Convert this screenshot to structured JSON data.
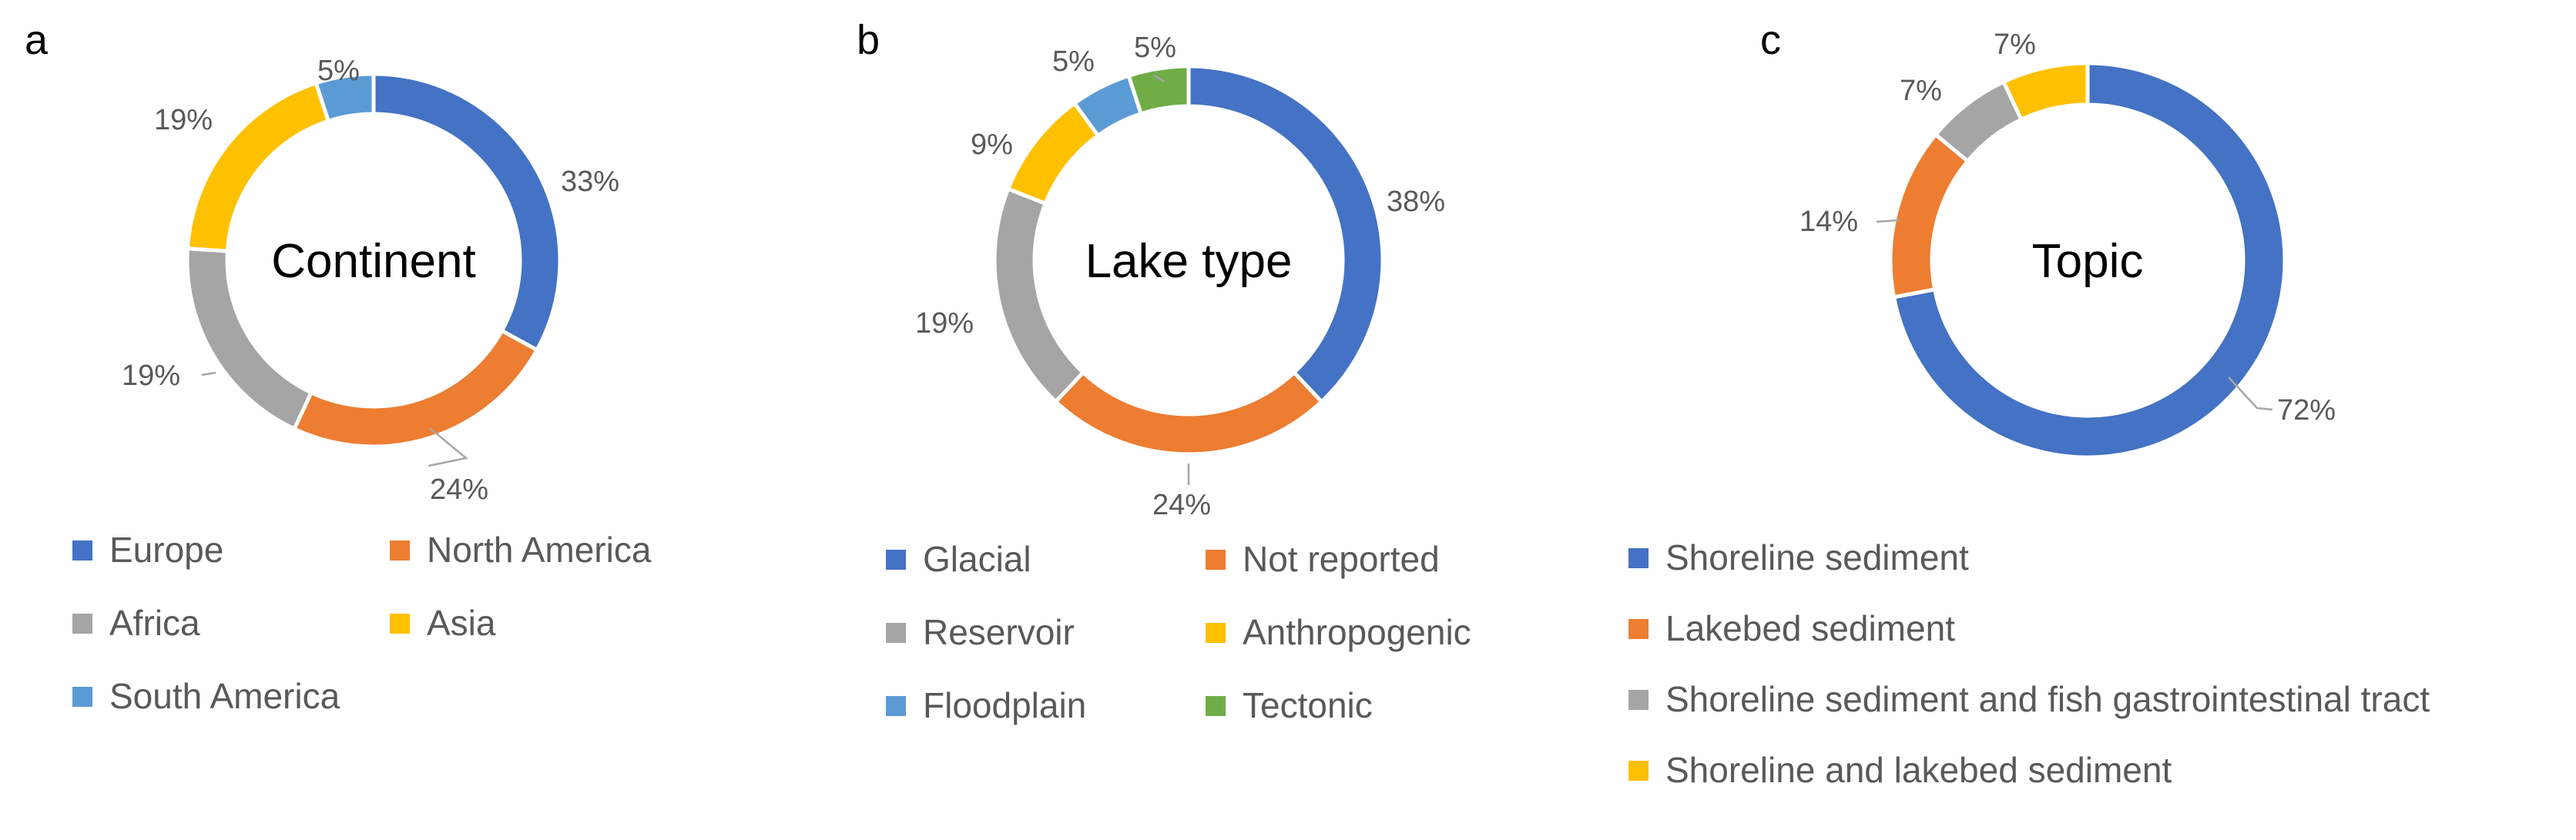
{
  "colors": {
    "blue": "#4472C4",
    "orange": "#ED7D31",
    "gray": "#A5A5A5",
    "yellow": "#FFC000",
    "lightblue": "#5B9BD5",
    "green": "#70AD47"
  },
  "chart_data": [
    {
      "panel": "a",
      "type": "pie",
      "donut": true,
      "center_label": "Continent",
      "legend_placement": "bottom",
      "slices": [
        {
          "label": "Europe",
          "value": 33,
          "display": "33%",
          "color": "#4472C4"
        },
        {
          "label": "North America",
          "value": 24,
          "display": "24%",
          "color": "#ED7D31"
        },
        {
          "label": "Africa",
          "value": 19,
          "display": "19%",
          "color": "#A5A5A5"
        },
        {
          "label": "Asia",
          "value": 19,
          "display": "19%",
          "color": "#FFC000"
        },
        {
          "label": "South America",
          "value": 5,
          "display": "5%",
          "color": "#5B9BD5"
        }
      ]
    },
    {
      "panel": "b",
      "type": "pie",
      "donut": true,
      "center_label": "Lake type",
      "legend_placement": "bottom",
      "slices": [
        {
          "label": "Glacial",
          "value": 38,
          "display": "38%",
          "color": "#4472C4"
        },
        {
          "label": "Not reported",
          "value": 24,
          "display": "24%",
          "color": "#ED7D31"
        },
        {
          "label": "Reservoir",
          "value": 19,
          "display": "19%",
          "color": "#A5A5A5"
        },
        {
          "label": "Anthropogenic",
          "value": 9,
          "display": "9%",
          "color": "#FFC000"
        },
        {
          "label": "Floodplain",
          "value": 5,
          "display": "5%",
          "color": "#5B9BD5"
        },
        {
          "label": "Tectonic",
          "value": 5,
          "display": "5%",
          "color": "#70AD47"
        }
      ]
    },
    {
      "panel": "c",
      "type": "pie",
      "donut": true,
      "center_label": "Topic",
      "legend_placement": "bottom",
      "slices": [
        {
          "label": "Shoreline sediment",
          "value": 72,
          "display": "72%",
          "color": "#4472C4"
        },
        {
          "label": "Lakebed sediment",
          "value": 14,
          "display": "14%",
          "color": "#ED7D31"
        },
        {
          "label": "Shoreline sediment and fish gastrointestinal tract",
          "value": 7,
          "display": "7%",
          "color": "#A5A5A5"
        },
        {
          "label": "Shoreline and lakebed sediment",
          "value": 7,
          "display": "7%",
          "color": "#FFC000"
        }
      ]
    }
  ]
}
